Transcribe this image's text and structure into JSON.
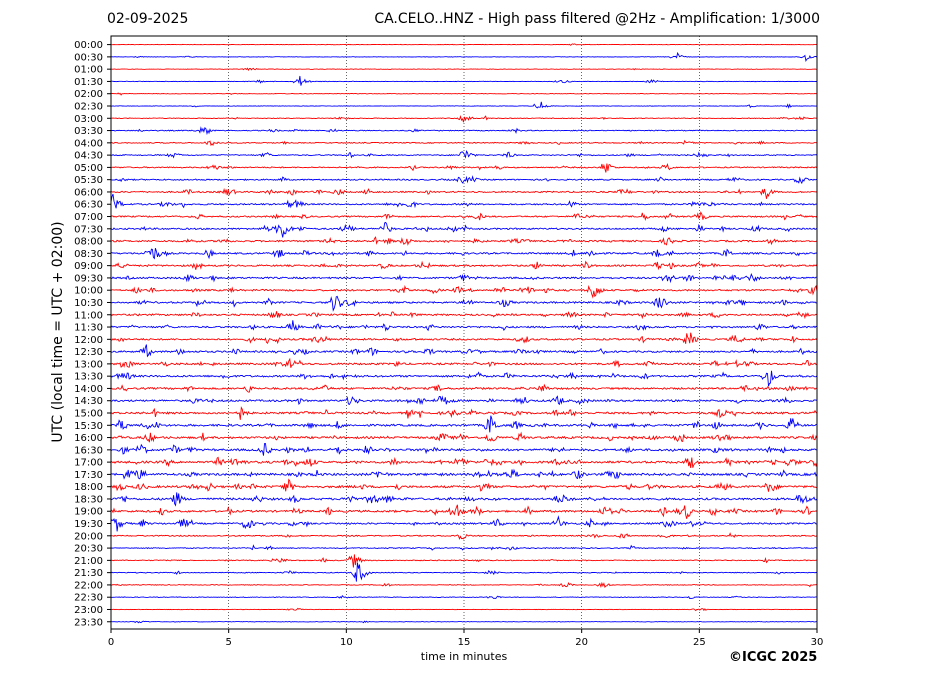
{
  "header": {
    "date": "02-09-2025",
    "title": "CA.CELO..HNZ - High pass filtered @2Hz - Amplification: 1/3000"
  },
  "footer": {
    "copyright": "©ICGC 2025"
  },
  "chart_data": {
    "type": "line",
    "title": "CA.CELO..HNZ - High pass filtered @2Hz - Amplification: 1/3000",
    "xlabel": "time in minutes",
    "ylabel": "UTC (local time = UTC + 02:00)",
    "xlim": [
      0,
      30
    ],
    "x_ticks": [
      0,
      5,
      10,
      15,
      20,
      25,
      30
    ],
    "x_gridlines": [
      5,
      10,
      15,
      20,
      25
    ],
    "grid": "vertical dotted",
    "row_labels": [
      "00:00",
      "00:30",
      "01:00",
      "01:30",
      "02:00",
      "02:30",
      "03:00",
      "03:30",
      "04:00",
      "04:30",
      "05:00",
      "05:30",
      "06:00",
      "06:30",
      "07:00",
      "07:30",
      "08:00",
      "08:30",
      "09:00",
      "09:30",
      "10:00",
      "10:30",
      "11:00",
      "11:30",
      "12:00",
      "12:30",
      "13:00",
      "13:30",
      "14:00",
      "14:30",
      "15:00",
      "15:30",
      "16:00",
      "16:30",
      "17:00",
      "17:30",
      "18:00",
      "18:30",
      "19:00",
      "19:30",
      "20:00",
      "20:30",
      "21:00",
      "21:30",
      "22:00",
      "22:30",
      "23:00",
      "23:30"
    ],
    "row_colors": [
      "#ff0000",
      "#0000ff"
    ],
    "activity_level": [
      0.05,
      0.06,
      0.07,
      0.1,
      0.08,
      0.1,
      0.2,
      0.3,
      0.35,
      0.4,
      0.45,
      0.5,
      0.55,
      0.6,
      0.6,
      0.65,
      0.7,
      0.7,
      0.7,
      0.72,
      0.7,
      0.75,
      0.7,
      0.72,
      0.7,
      0.75,
      0.78,
      0.8,
      0.8,
      0.82,
      0.85,
      0.9,
      0.9,
      0.95,
      1.0,
      1.0,
      0.95,
      0.9,
      0.85,
      0.7,
      0.45,
      0.35,
      0.3,
      0.28,
      0.2,
      0.15,
      0.08,
      0.06
    ],
    "events": [
      {
        "row": 1,
        "minute": 24.0,
        "amplitude": 1.2
      },
      {
        "row": 1,
        "minute": 29.5,
        "amplitude": 1.2
      },
      {
        "row": 3,
        "minute": 8.0,
        "amplitude": 1.5
      },
      {
        "row": 5,
        "minute": 18.2,
        "amplitude": 1.5
      },
      {
        "row": 6,
        "minute": 15.0,
        "amplitude": 1.5
      },
      {
        "row": 7,
        "minute": 4.0,
        "amplitude": 1.5
      },
      {
        "row": 9,
        "minute": 15.0,
        "amplitude": 2.0
      },
      {
        "row": 10,
        "minute": 21.0,
        "amplitude": 2.0
      },
      {
        "row": 12,
        "minute": 27.8,
        "amplitude": 1.8
      },
      {
        "row": 13,
        "minute": 0.1,
        "amplitude": 3.0
      },
      {
        "row": 15,
        "minute": 7.3,
        "amplitude": 3.0
      },
      {
        "row": 15,
        "minute": 11.6,
        "amplitude": 2.0
      },
      {
        "row": 16,
        "minute": 12.5,
        "amplitude": 1.5
      },
      {
        "row": 17,
        "minute": 1.8,
        "amplitude": 2.5
      },
      {
        "row": 20,
        "minute": 20.5,
        "amplitude": 3.0
      },
      {
        "row": 21,
        "minute": 9.5,
        "amplitude": 3.0
      },
      {
        "row": 21,
        "minute": 23.3,
        "amplitude": 2.5
      },
      {
        "row": 23,
        "minute": 7.7,
        "amplitude": 1.8
      },
      {
        "row": 24,
        "minute": 24.5,
        "amplitude": 2.5
      },
      {
        "row": 25,
        "minute": 1.5,
        "amplitude": 1.8
      },
      {
        "row": 27,
        "minute": 27.9,
        "amplitude": 3.0
      },
      {
        "row": 30,
        "minute": 5.5,
        "amplitude": 2.0
      },
      {
        "row": 31,
        "minute": 16.1,
        "amplitude": 3.0
      },
      {
        "row": 31,
        "minute": 28.9,
        "amplitude": 2.2
      },
      {
        "row": 33,
        "minute": 6.5,
        "amplitude": 2.0
      },
      {
        "row": 34,
        "minute": 24.6,
        "amplitude": 2.2
      },
      {
        "row": 35,
        "minute": 0.8,
        "amplitude": 2.2
      },
      {
        "row": 36,
        "minute": 7.5,
        "amplitude": 2.2
      },
      {
        "row": 36,
        "minute": 28.0,
        "amplitude": 2.2
      },
      {
        "row": 37,
        "minute": 2.8,
        "amplitude": 2.2
      },
      {
        "row": 37,
        "minute": 29.3,
        "amplitude": 2.0
      },
      {
        "row": 38,
        "minute": 14.6,
        "amplitude": 3.0
      },
      {
        "row": 38,
        "minute": 24.4,
        "amplitude": 2.5
      },
      {
        "row": 39,
        "minute": 0.2,
        "amplitude": 2.5
      },
      {
        "row": 39,
        "minute": 5.8,
        "amplitude": 2.0
      },
      {
        "row": 39,
        "minute": 19.0,
        "amplitude": 1.8
      },
      {
        "row": 43,
        "minute": 10.5,
        "amplitude": 3.5
      },
      {
        "row": 42,
        "minute": 10.3,
        "amplitude": 2.0
      }
    ]
  }
}
